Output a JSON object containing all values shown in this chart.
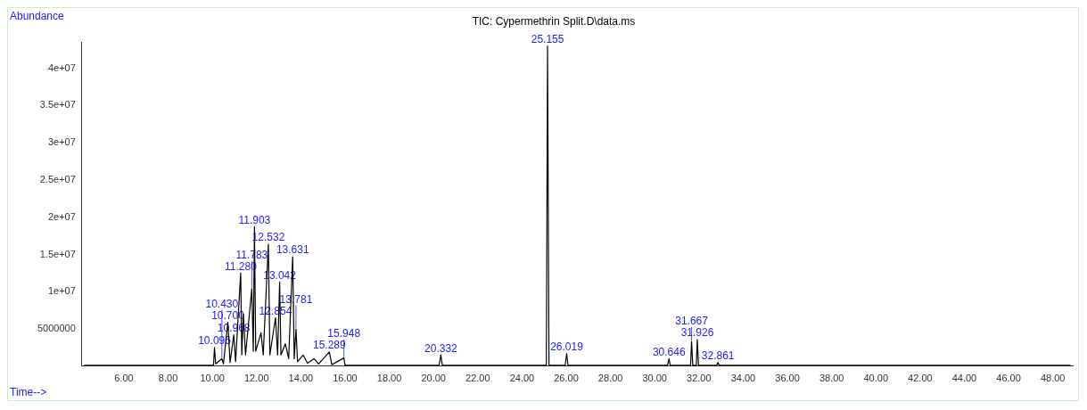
{
  "chart_data": {
    "type": "line",
    "title": "TIC: Cypermethrin Split.D\\data.ms",
    "xlabel": "Time-->",
    "ylabel": "Abundance",
    "xlim": [
      4.1,
      48.9
    ],
    "xticks": [
      {
        "value": 6,
        "label": "6.00"
      },
      {
        "value": 8,
        "label": "8.00"
      },
      {
        "value": 10,
        "label": "10.00"
      },
      {
        "value": 12,
        "label": "12.00"
      },
      {
        "value": 14,
        "label": "14.00"
      },
      {
        "value": 16,
        "label": "16.00"
      },
      {
        "value": 18,
        "label": "18.00"
      },
      {
        "value": 20,
        "label": "20.00"
      },
      {
        "value": 22,
        "label": "22.00"
      },
      {
        "value": 24,
        "label": "24.00"
      },
      {
        "value": 26,
        "label": "26.00"
      },
      {
        "value": 28,
        "label": "28.00"
      },
      {
        "value": 30,
        "label": "30.00"
      },
      {
        "value": 32,
        "label": "32.00"
      },
      {
        "value": 34,
        "label": "34.00"
      },
      {
        "value": 36,
        "label": "36.00"
      },
      {
        "value": 38,
        "label": "38.00"
      },
      {
        "value": 40,
        "label": "40.00"
      },
      {
        "value": 42,
        "label": "42.00"
      },
      {
        "value": 44,
        "label": "44.00"
      },
      {
        "value": 46,
        "label": "46.00"
      },
      {
        "value": 48,
        "label": "48.00"
      }
    ],
    "ylim": [
      0,
      43500000
    ],
    "yticks": [
      5000000,
      {
        "value": 10000000,
        "label": "1e+07"
      },
      {
        "value": 15000000,
        "label": "1.5e+07"
      },
      {
        "value": 20000000,
        "label": "2e+07"
      },
      {
        "value": 25000000,
        "label": "2.5e+07"
      },
      {
        "value": 30000000,
        "label": "3e+07"
      },
      {
        "value": 35000000,
        "label": "3.5e+07"
      },
      {
        "value": 40000000,
        "label": "4e+07"
      }
    ],
    "marker": "none",
    "line_style": "solid",
    "legend": false,
    "series": [
      {
        "color": "#000000",
        "x": [
          4.2,
          10.05,
          10.096,
          10.15,
          10.43,
          10.5,
          10.7,
          10.8,
          10.968,
          11.05,
          11.28,
          11.33,
          11.4,
          11.5,
          11.783,
          11.85,
          11.903,
          11.96,
          12.2,
          12.3,
          12.532,
          12.6,
          12.854,
          12.95,
          13.042,
          13.1,
          13.3,
          13.45,
          13.631,
          13.7,
          13.781,
          13.85,
          14.1,
          14.3,
          14.6,
          14.8,
          15.289,
          15.4,
          15.948,
          16.0,
          20.25,
          20.332,
          20.4,
          25.1,
          25.155,
          25.22,
          25.95,
          26.019,
          26.08,
          30.58,
          30.646,
          30.7,
          31.62,
          31.667,
          31.72,
          31.88,
          31.926,
          31.98,
          32.8,
          32.861,
          32.92,
          48.8
        ],
        "values": [
          100000,
          100000,
          2500000,
          300000,
          1000000,
          300000,
          5900000,
          500000,
          4200000,
          600000,
          12500000,
          1500000,
          7000000,
          1500000,
          10400000,
          2000000,
          18700000,
          2000000,
          4500000,
          1500000,
          16400000,
          1500000,
          6500000,
          1500000,
          11300000,
          1500000,
          3000000,
          1000000,
          14700000,
          1000000,
          5000000,
          600000,
          1500000,
          400000,
          1000000,
          300000,
          1900000,
          200000,
          1100000,
          100000,
          100000,
          1500000,
          100000,
          100000,
          43000000,
          100000,
          100000,
          1700000,
          100000,
          100000,
          1000000,
          100000,
          100000,
          3300000,
          100000,
          100000,
          3600000,
          100000,
          100000,
          500000,
          100000,
          100000
        ]
      }
    ],
    "annotations": [
      {
        "text": "10.096",
        "x": 10.096,
        "y": 2500000
      },
      {
        "text": "10.430",
        "x": 10.43,
        "y": 1000000
      },
      {
        "text": "10.700",
        "x": 10.7,
        "y": 5900000
      },
      {
        "text": "10.968",
        "x": 10.968,
        "y": 4200000
      },
      {
        "text": "11.280",
        "x": 11.28,
        "y": 12500000
      },
      {
        "text": "11.783",
        "x": 11.783,
        "y": 10400000
      },
      {
        "text": "11.903",
        "x": 11.903,
        "y": 18700000
      },
      {
        "text": "12.532",
        "x": 12.532,
        "y": 16400000
      },
      {
        "text": "12.854",
        "x": 12.854,
        "y": 6500000
      },
      {
        "text": "13.042",
        "x": 13.042,
        "y": 11300000
      },
      {
        "text": "13.631",
        "x": 13.631,
        "y": 14700000
      },
      {
        "text": "13.781",
        "x": 13.781,
        "y": 5000000
      },
      {
        "text": "15.289",
        "x": 15.289,
        "y": 1900000
      },
      {
        "text": "15.948",
        "x": 15.948,
        "y": 1100000
      },
      {
        "text": "20.332",
        "x": 20.332,
        "y": 1500000
      },
      {
        "text": "25.155",
        "x": 25.155,
        "y": 43000000
      },
      {
        "text": "26.019",
        "x": 26.019,
        "y": 1700000
      },
      {
        "text": "30.646",
        "x": 30.646,
        "y": 1000000
      },
      {
        "text": "31.667",
        "x": 31.667,
        "y": 3300000
      },
      {
        "text": "31.926",
        "x": 31.926,
        "y": 3600000
      },
      {
        "text": "32.861",
        "x": 32.861,
        "y": 500000
      }
    ]
  }
}
